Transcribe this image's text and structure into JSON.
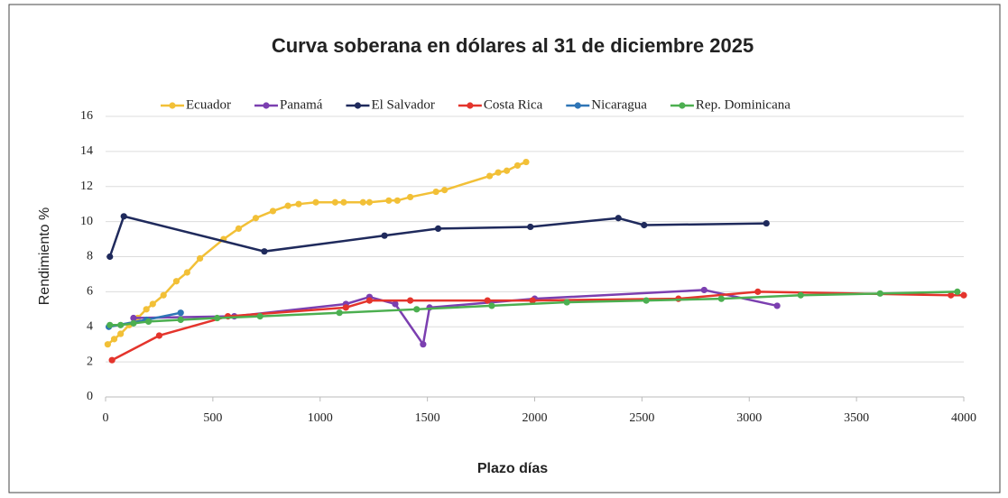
{
  "chart_data": {
    "type": "line",
    "title": "Curva soberana en dólares al 31 de diciembre 2025",
    "x_label": "Plazo días",
    "y_label": "Rendimiento %",
    "xlim": [
      0,
      4000
    ],
    "xticks": [
      0,
      500,
      1000,
      1500,
      2000,
      2500,
      3000,
      3500,
      4000
    ],
    "ylim": [
      0,
      16
    ],
    "yticks": [
      0,
      2,
      4,
      6,
      8,
      10,
      12,
      14,
      16
    ],
    "grid": true,
    "legend": "top",
    "series": [
      {
        "name": "Ecuador",
        "color": "#f2c037",
        "x": [
          10,
          40,
          70,
          110,
          150,
          190,
          220,
          270,
          330,
          380,
          440,
          550,
          620,
          700,
          780,
          850,
          900,
          980,
          1070,
          1110,
          1200,
          1230,
          1320,
          1360,
          1420,
          1540,
          1580,
          1790,
          1830,
          1870,
          1920,
          1960
        ],
        "values": [
          3.0,
          3.3,
          3.6,
          4.1,
          4.5,
          5.0,
          5.3,
          5.8,
          6.6,
          7.1,
          7.9,
          9.0,
          9.6,
          10.2,
          10.6,
          10.9,
          11.0,
          11.1,
          11.1,
          11.1,
          11.1,
          11.1,
          11.2,
          11.2,
          11.4,
          11.7,
          11.8,
          12.6,
          12.8,
          12.9,
          13.2,
          13.4
        ]
      },
      {
        "name": "Panamá",
        "color": "#7b3fb0",
        "x": [
          130,
          600,
          1120,
          1230,
          1350,
          1480,
          1510,
          2000,
          2790,
          3130
        ],
        "values": [
          4.5,
          4.6,
          5.3,
          5.7,
          5.3,
          3.0,
          5.1,
          5.6,
          6.1,
          5.2
        ]
      },
      {
        "name": "El Salvador",
        "color": "#1f2a5c",
        "x": [
          20,
          85,
          740,
          1300,
          1550,
          1980,
          2390,
          2510,
          3080
        ],
        "values": [
          8.0,
          10.3,
          8.3,
          9.2,
          9.6,
          9.7,
          10.2,
          9.8,
          9.9
        ]
      },
      {
        "name": "Costa Rica",
        "color": "#e4342c",
        "x": [
          30,
          250,
          570,
          1120,
          1230,
          1420,
          1780,
          1990,
          2670,
          3040,
          3940,
          4000
        ],
        "values": [
          2.1,
          3.5,
          4.6,
          5.1,
          5.5,
          5.5,
          5.5,
          5.5,
          5.6,
          6.0,
          5.8,
          5.8
        ]
      },
      {
        "name": "Nicaragua",
        "color": "#2e75b6",
        "x": [
          15,
          190,
          350
        ],
        "values": [
          4.0,
          4.4,
          4.8
        ]
      },
      {
        "name": "Rep. Dominicana",
        "color": "#4caf50",
        "x": [
          20,
          70,
          130,
          200,
          350,
          520,
          720,
          1090,
          1450,
          1800,
          2150,
          2520,
          2870,
          3240,
          3610,
          3970
        ],
        "values": [
          4.1,
          4.1,
          4.2,
          4.3,
          4.4,
          4.5,
          4.6,
          4.8,
          5.0,
          5.2,
          5.4,
          5.5,
          5.6,
          5.8,
          5.9,
          6.0
        ]
      }
    ]
  }
}
